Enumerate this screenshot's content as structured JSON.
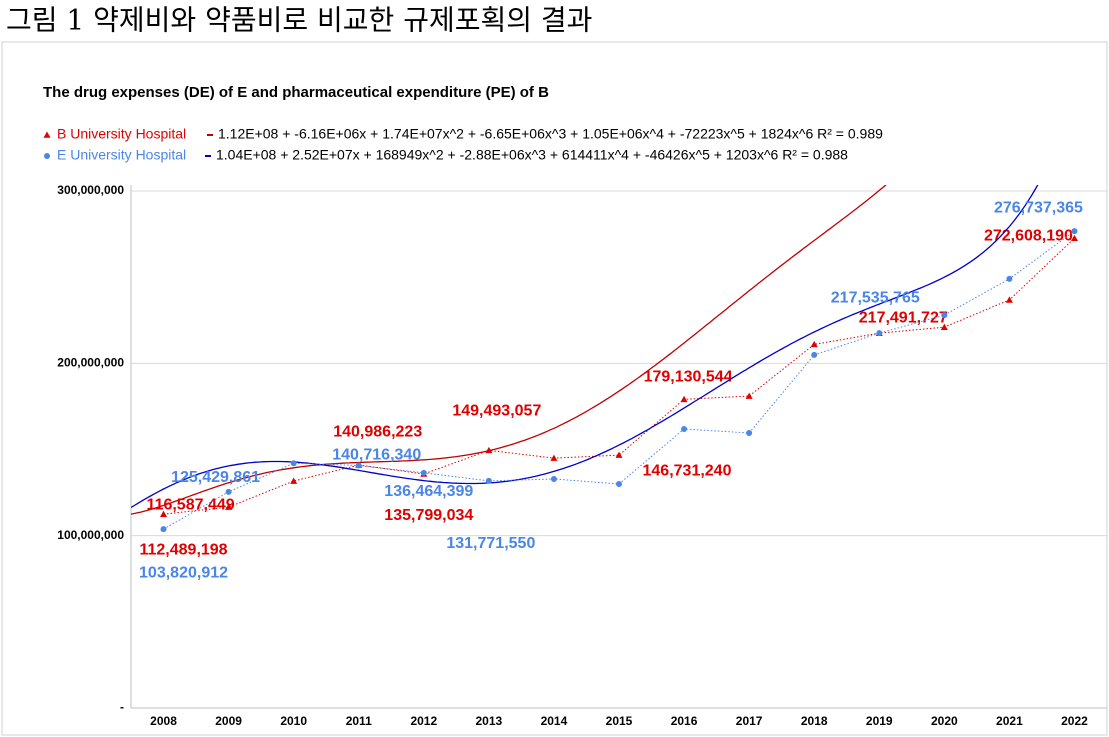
{
  "caption": "그림 1 약제비와 약품비로 비교한 규제포획의 결과",
  "chart_data": {
    "type": "line",
    "title": "The drug expenses (DE) of E and pharmaceutical expenditure (PE) of B",
    "categories": [
      "2008",
      "2009",
      "2010",
      "2011",
      "2012",
      "2013",
      "2014",
      "2015",
      "2016",
      "2017",
      "2018",
      "2019",
      "2020",
      "2021",
      "2022"
    ],
    "series": [
      {
        "name": "B University Hospital",
        "color": "#e00000",
        "marker": "triangle",
        "trendline": "1.12E+08 + -6.16E+06x + 1.74E+07x^2 + -6.65E+06x^3 + 1.05E+06x^4 + -72223x^5 + 1824x^6 R² = 0.989",
        "values": [
          112489198,
          116587449,
          131700000,
          140986223,
          135799034,
          149493057,
          145000000,
          146731240,
          179130544,
          181000000,
          211000000,
          217491727,
          221000000,
          236800000,
          272608190
        ],
        "value_labels": [
          "112,489,198",
          "116,587,449",
          null,
          "140,986,223",
          "135,799,034",
          "149,493,057",
          null,
          "146,731,240",
          "179,130,544",
          null,
          null,
          "217,491,727",
          null,
          null,
          "272,608,190"
        ]
      },
      {
        "name": "E University Hospital",
        "color": "#4a86e8",
        "marker": "circle",
        "trendline": "1.04E+08 + 2.52E+07x + 168949x^2 + -2.88E+06x^3 + 614411x^4 + -46426x^5 + 1203x^6 R² = 0.988",
        "values": [
          103820912,
          125429861,
          142000000,
          140716340,
          136464399,
          131771550,
          132900000,
          130000000,
          161900000,
          159600000,
          204900000,
          217535765,
          228000000,
          249000000,
          276737365
        ],
        "value_labels": [
          "103,820,912",
          "125,429,861",
          null,
          "140,716,340",
          "136,464,399",
          "131,771,550",
          null,
          null,
          null,
          null,
          null,
          "217,535,765",
          null,
          null,
          "276,737,365"
        ]
      }
    ],
    "ylim": [
      0,
      300000000
    ],
    "yticks": [
      {
        "value": 0,
        "label": "-"
      },
      {
        "value": 100000000,
        "label": "100,000,000"
      },
      {
        "value": 200000000,
        "label": "200,000,000"
      },
      {
        "value": 300000000,
        "label": "300,000,000"
      }
    ],
    "grid": true
  }
}
